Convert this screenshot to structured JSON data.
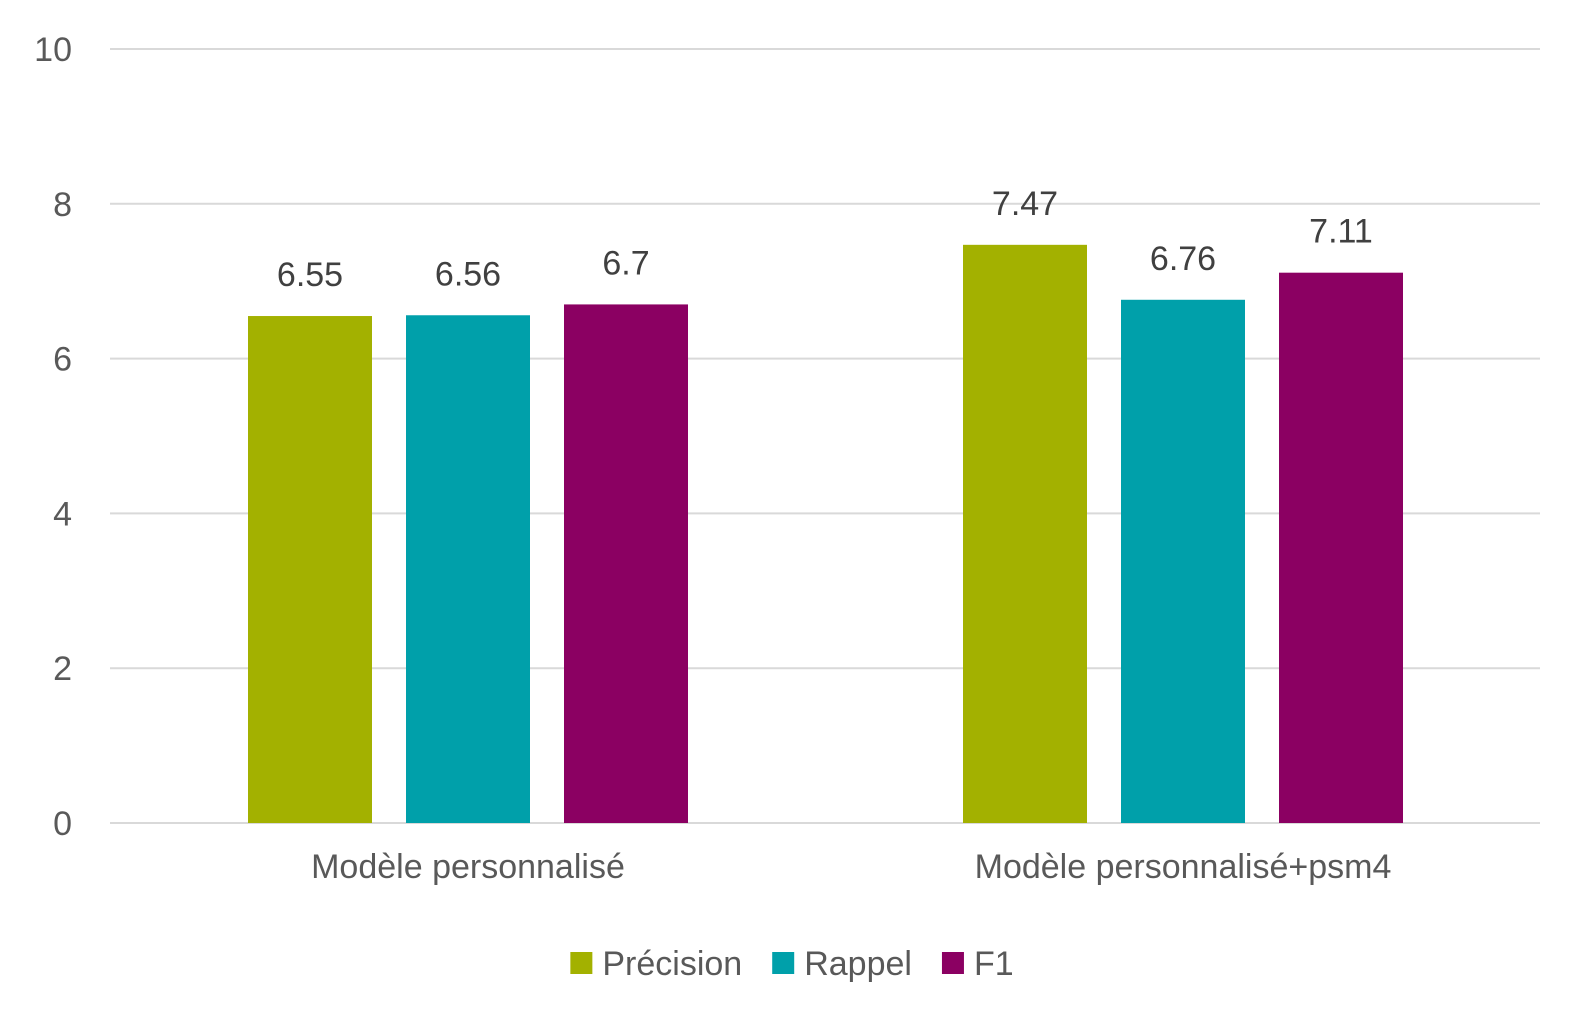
{
  "chart_data": {
    "type": "bar",
    "categories": [
      "Modèle personnalisé",
      "Modèle personnalisé+psm4"
    ],
    "series": [
      {
        "name": "Précision",
        "values": [
          6.55,
          7.47
        ],
        "color": "#a3b100"
      },
      {
        "name": "Rappel",
        "values": [
          6.56,
          6.76
        ],
        "color": "#00a0aa"
      },
      {
        "name": "F1",
        "values": [
          6.7,
          7.11
        ],
        "color": "#8b0062"
      }
    ],
    "ylim": [
      0,
      10
    ],
    "yticks": [
      0,
      2,
      4,
      6,
      8,
      10
    ],
    "grid": true,
    "legend_position": "bottom",
    "title": "",
    "xlabel": "",
    "ylabel": ""
  }
}
